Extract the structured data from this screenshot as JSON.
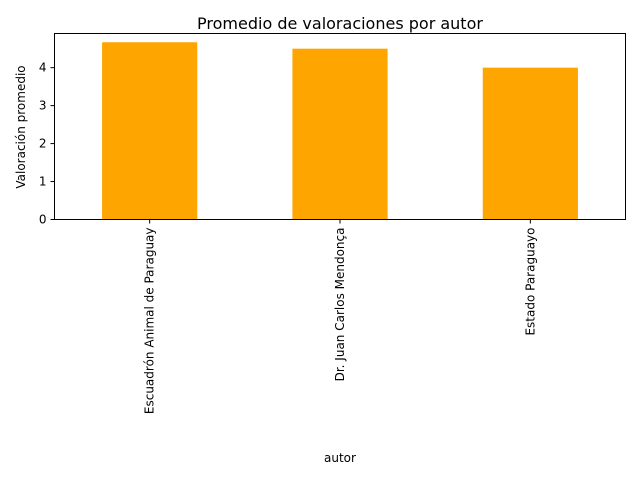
{
  "chart_data": {
    "type": "bar",
    "title": "Promedio de valoraciones por autor",
    "xlabel": "autor",
    "ylabel": "Valoración promedio",
    "categories": [
      "Escuadrón Animal de Paraguay",
      "Dr. Juan Carlos Mendonça",
      "Estado Paraguayo"
    ],
    "values": [
      4.67,
      4.5,
      4.0
    ],
    "ylim": [
      0,
      4.9
    ],
    "yticks": [
      0,
      1,
      2,
      3,
      4
    ],
    "bar_color": "#ffa500",
    "grid": false
  }
}
